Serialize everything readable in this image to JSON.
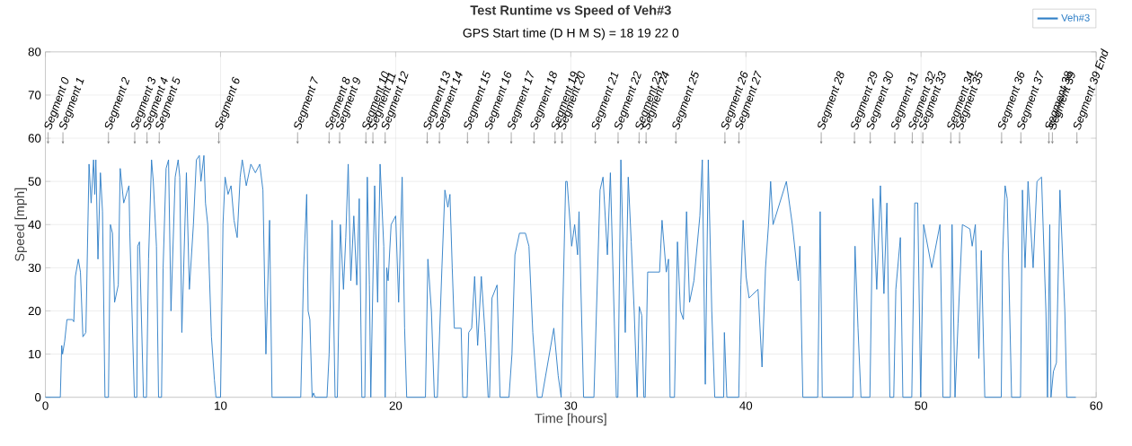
{
  "chart_data": {
    "type": "line",
    "title": "Test Runtime vs Speed of Veh#3",
    "subtitle": "GPS Start time (D H M S) = 18  19  22   0",
    "xlabel": "Time [hours]",
    "ylabel": "Speed [mph]",
    "xlim": [
      0,
      60
    ],
    "xticks": [
      0,
      10,
      20,
      30,
      40,
      50,
      60
    ],
    "ylim": [
      0,
      80
    ],
    "yticks": [
      0,
      10,
      20,
      30,
      40,
      50,
      60,
      70,
      80
    ],
    "grid": true,
    "legend": "top right",
    "series": [
      {
        "name": "Veh#3",
        "color": "#2f7fc7",
        "x": [
          0,
          0.85,
          0.93,
          0.98,
          1.1,
          1.23,
          1.54,
          1.62,
          1.71,
          1.88,
          2.0,
          2.14,
          2.31,
          2.49,
          2.61,
          2.75,
          2.82,
          2.88,
          3.0,
          3.14,
          3.26,
          3.4,
          3.6,
          3.71,
          3.83,
          3.95,
          4.16,
          4.27,
          4.47,
          4.77,
          4.82,
          5.08,
          5.22,
          5.27,
          5.37,
          5.6,
          5.77,
          5.89,
          6.06,
          6.16,
          6.34,
          6.46,
          6.63,
          6.72,
          6.89,
          7.03,
          7.17,
          7.41,
          7.58,
          7.67,
          7.79,
          8.05,
          8.22,
          8.45,
          8.62,
          8.79,
          8.88,
          9.05,
          9.14,
          9.27,
          9.48,
          9.65,
          9.74,
          10.0,
          10.14,
          10.26,
          10.43,
          10.6,
          10.77,
          10.95,
          11.12,
          11.24,
          11.47,
          11.73,
          11.99,
          12.24,
          12.42,
          12.59,
          12.8,
          12.94,
          14.58,
          14.75,
          14.92,
          15.0,
          15.1,
          15.23,
          15.31,
          15.4,
          16.08,
          16.2,
          16.37,
          16.54,
          16.67,
          16.84,
          17.02,
          17.15,
          17.29,
          17.44,
          17.61,
          17.78,
          17.92,
          18.07,
          18.24,
          18.38,
          18.5,
          18.58,
          18.8,
          18.97,
          19.11,
          19.32,
          19.4,
          19.49,
          19.57,
          19.74,
          20.0,
          20.17,
          20.37,
          20.51,
          20.63,
          21.7,
          21.84,
          22.04,
          22.21,
          22.38,
          22.64,
          22.81,
          22.98,
          23.1,
          23.23,
          23.35,
          23.74,
          23.83,
          24.08,
          24.17,
          24.34,
          24.51,
          24.68,
          24.89,
          25.1,
          25.28,
          25.36,
          25.5,
          25.79,
          25.96,
          26.47,
          26.64,
          26.81,
          27.07,
          27.41,
          27.61,
          27.83,
          28.09,
          28.35,
          29.03,
          29.28,
          29.45,
          29.54,
          29.71,
          29.79,
          30.05,
          30.22,
          30.39,
          30.47,
          30.73,
          31.32,
          31.67,
          31.84,
          32.09,
          32.26,
          32.6,
          32.69,
          32.86,
          33.11,
          33.28,
          33.45,
          33.62,
          33.79,
          33.91,
          34.05,
          34.17,
          34.25,
          34.39,
          35.07,
          35.21,
          35.45,
          35.58,
          35.67,
          35.92,
          36.09,
          36.26,
          36.43,
          36.61,
          36.78,
          37.03,
          37.37,
          37.51,
          37.68,
          37.85,
          38.05,
          38.22,
          38.73,
          38.77,
          38.91,
          39.59,
          39.71,
          39.84,
          40.01,
          40.18,
          40.69,
          40.92,
          41.12,
          41.29,
          41.41,
          41.55,
          42.31,
          42.65,
          42.99,
          43.08,
          43.25,
          44.1,
          44.24,
          44.36,
          46.11,
          46.23,
          46.4,
          46.57,
          47.08,
          47.25,
          47.47,
          47.68,
          47.88,
          48.05,
          48.22,
          48.44,
          48.56,
          48.82,
          48.96,
          49.47,
          49.64,
          49.81,
          49.98,
          50.15,
          50.61,
          51.08,
          51.25,
          51.67,
          51.77,
          51.94,
          52.11,
          52.36,
          52.79,
          52.92,
          53.1,
          53.3,
          53.44,
          53.64,
          54.58,
          54.66,
          54.8,
          54.92,
          55.17,
          55.68,
          55.79,
          55.94,
          56.11,
          56.4,
          56.62,
          56.88,
          57.13,
          57.22,
          57.35,
          57.42,
          57.56,
          57.73,
          57.93,
          58.21,
          58.32,
          58.84
        ],
        "values": [
          0,
          0,
          12,
          10,
          13,
          18,
          18,
          17.5,
          28,
          32,
          29,
          14,
          15,
          54,
          45,
          55,
          47,
          55,
          32,
          52,
          43,
          0,
          0,
          40,
          38,
          22,
          26,
          53,
          45,
          49,
          38,
          0,
          0,
          35,
          36,
          0,
          0,
          32,
          55,
          50,
          35,
          0,
          0,
          30,
          53,
          55,
          20,
          51,
          55,
          51,
          15,
          52,
          25,
          40,
          55,
          56,
          50,
          56,
          45,
          40,
          14,
          4,
          0,
          0,
          40,
          51,
          47,
          49,
          41,
          37,
          51,
          55,
          49,
          54,
          52,
          54,
          48,
          10,
          41,
          0,
          0,
          30,
          47,
          20,
          18,
          0,
          1,
          0,
          0,
          10,
          41,
          0,
          0,
          40,
          25,
          37,
          54,
          27,
          42,
          26,
          46,
          0,
          0,
          51,
          26,
          0,
          49,
          22,
          54,
          35,
          0,
          30,
          27,
          40,
          42,
          22,
          51,
          16,
          0,
          0,
          32,
          20,
          0,
          0,
          30,
          48,
          44,
          47,
          30,
          16,
          16,
          0,
          0,
          15,
          16,
          28,
          12,
          28,
          15,
          0,
          0,
          23,
          26,
          0,
          0,
          10,
          33,
          38,
          38,
          35,
          15,
          0,
          0,
          16,
          5,
          0,
          20,
          50,
          50,
          35,
          40,
          33,
          43,
          0,
          0,
          48,
          51,
          33,
          52,
          0,
          0,
          55,
          15,
          51,
          36,
          20,
          0,
          21,
          19,
          0,
          0,
          29,
          29,
          41,
          29,
          32,
          0,
          0,
          36,
          20,
          18,
          43,
          22,
          27,
          42,
          55,
          3,
          55,
          20,
          0,
          0,
          15,
          0,
          0,
          26,
          41,
          28,
          23,
          25,
          7,
          30,
          40,
          50,
          40,
          50,
          40,
          27,
          35,
          0,
          0,
          43,
          0,
          0,
          35,
          16,
          0,
          0,
          46,
          25,
          49,
          24,
          45,
          0,
          0,
          25,
          37,
          0,
          0,
          45,
          45,
          0,
          40,
          30,
          40,
          0,
          0,
          40,
          0,
          17,
          40,
          39,
          35,
          40,
          9,
          34,
          0,
          0,
          33,
          49,
          46,
          0,
          0,
          48,
          30,
          50,
          30,
          50,
          51,
          20,
          0,
          40,
          0,
          6,
          8,
          48,
          20,
          0,
          0
        ]
      }
    ],
    "ref_lines": [
      {
        "axis": "x",
        "value": 0.15,
        "label": "Segment 0",
        "color": "#808080"
      },
      {
        "axis": "x",
        "value": 1.0,
        "label": "Segment 1"
      },
      {
        "axis": "x",
        "value": 3.6,
        "label": "Segment 2"
      },
      {
        "axis": "x",
        "value": 5.1,
        "label": "Segment 3"
      },
      {
        "axis": "x",
        "value": 5.8,
        "label": "Segment 4"
      },
      {
        "axis": "x",
        "value": 6.5,
        "label": "Segment 5"
      },
      {
        "axis": "x",
        "value": 9.9,
        "label": "Segment 6"
      },
      {
        "axis": "x",
        "value": 14.4,
        "label": "Segment 7"
      },
      {
        "axis": "x",
        "value": 16.2,
        "label": "Segment 8"
      },
      {
        "axis": "x",
        "value": 16.8,
        "label": "Segment 9"
      },
      {
        "axis": "x",
        "value": 18.3,
        "label": "Segment 10"
      },
      {
        "axis": "x",
        "value": 18.7,
        "label": "Segment 11"
      },
      {
        "axis": "x",
        "value": 19.4,
        "label": "Segment 12"
      },
      {
        "axis": "x",
        "value": 21.8,
        "label": "Segment 13"
      },
      {
        "axis": "x",
        "value": 22.5,
        "label": "Segment 14"
      },
      {
        "axis": "x",
        "value": 24.1,
        "label": "Segment 15"
      },
      {
        "axis": "x",
        "value": 25.3,
        "label": "Segment 16"
      },
      {
        "axis": "x",
        "value": 26.6,
        "label": "Segment 17"
      },
      {
        "axis": "x",
        "value": 27.9,
        "label": "Segment 18"
      },
      {
        "axis": "x",
        "value": 29.1,
        "label": "Segment 19"
      },
      {
        "axis": "x",
        "value": 29.5,
        "label": "Segment 20"
      },
      {
        "axis": "x",
        "value": 31.4,
        "label": "Segment 21"
      },
      {
        "axis": "x",
        "value": 32.7,
        "label": "Segment 22"
      },
      {
        "axis": "x",
        "value": 33.9,
        "label": "Segment 23"
      },
      {
        "axis": "x",
        "value": 34.3,
        "label": "Segment 24"
      },
      {
        "axis": "x",
        "value": 36.0,
        "label": "Segment 25"
      },
      {
        "axis": "x",
        "value": 38.8,
        "label": "Segment 26"
      },
      {
        "axis": "x",
        "value": 39.6,
        "label": "Segment 27"
      },
      {
        "axis": "x",
        "value": 44.3,
        "label": "Segment 28"
      },
      {
        "axis": "x",
        "value": 46.2,
        "label": "Segment 29"
      },
      {
        "axis": "x",
        "value": 47.1,
        "label": "Segment 30"
      },
      {
        "axis": "x",
        "value": 48.5,
        "label": "Segment 31"
      },
      {
        "axis": "x",
        "value": 49.5,
        "label": "Segment 32"
      },
      {
        "axis": "x",
        "value": 50.1,
        "label": "Segment 33"
      },
      {
        "axis": "x",
        "value": 51.7,
        "label": "Segment 34"
      },
      {
        "axis": "x",
        "value": 52.2,
        "label": "Segment 35"
      },
      {
        "axis": "x",
        "value": 54.6,
        "label": "Segment 36"
      },
      {
        "axis": "x",
        "value": 55.7,
        "label": "Segment 37"
      },
      {
        "axis": "x",
        "value": 57.3,
        "label": "Segment 38"
      },
      {
        "axis": "x",
        "value": 57.5,
        "label": "Segment 39"
      },
      {
        "axis": "x",
        "value": 58.9,
        "label": "Segment 39 End"
      }
    ]
  }
}
